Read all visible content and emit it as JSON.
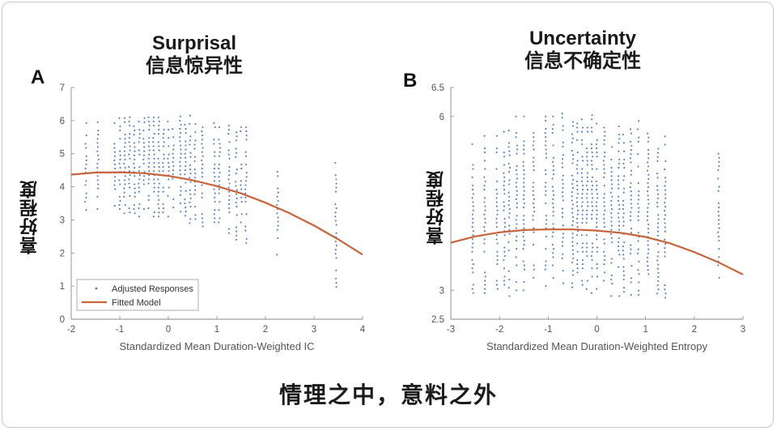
{
  "panels": [
    {
      "letter": "A",
      "title_en": "Surprisal",
      "title_zh": "信息惊异性",
      "ylabel": "喜好程度",
      "legend": {
        "points": "Adjusted Responses",
        "line": "Fitted Model"
      }
    },
    {
      "letter": "B",
      "title_en": "Uncertainty",
      "title_zh": "信息不确定性",
      "ylabel": "喜好程度"
    }
  ],
  "caption": "情理之中，意料之外",
  "colors": {
    "points": "#4f78c2",
    "curve": "#c8643a",
    "axis": "#8a8a8a",
    "tick": "#555555"
  },
  "chart_data": [
    {
      "type": "scatter",
      "title": "Surprisal",
      "xlabel": "Standardized Mean Duration-Weighted IC",
      "ylabel": "喜好程度",
      "xlim": [
        -2,
        4
      ],
      "ylim": [
        0,
        7
      ],
      "xticks": [
        -2,
        -1,
        0,
        1,
        2,
        3,
        4
      ],
      "yticks": [
        0,
        1,
        2,
        3,
        4,
        5,
        6,
        7
      ],
      "legend_position": "bottom-left",
      "series": [
        {
          "name": "Adjusted Responses",
          "kind": "points",
          "columns": [
            {
              "x": -1.7,
              "ymin": 3.3,
              "ymax": 6.0
            },
            {
              "x": -1.45,
              "ymin": 3.2,
              "ymax": 6.0
            },
            {
              "x": -1.1,
              "ymin": 3.3,
              "ymax": 6.1
            },
            {
              "x": -1.0,
              "ymin": 3.2,
              "ymax": 6.1
            },
            {
              "x": -0.9,
              "ymin": 3.2,
              "ymax": 6.1
            },
            {
              "x": -0.8,
              "ymin": 3.1,
              "ymax": 6.2
            },
            {
              "x": -0.7,
              "ymin": 3.2,
              "ymax": 6.2
            },
            {
              "x": -0.6,
              "ymin": 3.1,
              "ymax": 6.2
            },
            {
              "x": -0.5,
              "ymin": 3.2,
              "ymax": 6.2
            },
            {
              "x": -0.4,
              "ymin": 3.1,
              "ymax": 6.2
            },
            {
              "x": -0.3,
              "ymin": 3.1,
              "ymax": 6.2
            },
            {
              "x": -0.2,
              "ymin": 3.1,
              "ymax": 6.2
            },
            {
              "x": -0.1,
              "ymin": 3.1,
              "ymax": 6.2
            },
            {
              "x": 0.0,
              "ymin": 3.1,
              "ymax": 6.2
            },
            {
              "x": 0.1,
              "ymin": 3.0,
              "ymax": 6.2
            },
            {
              "x": 0.25,
              "ymin": 3.0,
              "ymax": 6.2
            },
            {
              "x": 0.35,
              "ymin": 3.0,
              "ymax": 6.1
            },
            {
              "x": 0.45,
              "ymin": 2.9,
              "ymax": 6.2
            },
            {
              "x": 0.55,
              "ymin": 2.9,
              "ymax": 6.1
            },
            {
              "x": 0.7,
              "ymin": 2.8,
              "ymax": 6.0
            },
            {
              "x": 0.95,
              "ymin": 2.8,
              "ymax": 6.1
            },
            {
              "x": 1.05,
              "ymin": 2.8,
              "ymax": 5.9
            },
            {
              "x": 1.25,
              "ymin": 2.6,
              "ymax": 6.0
            },
            {
              "x": 1.4,
              "ymin": 2.4,
              "ymax": 5.9
            },
            {
              "x": 1.5,
              "ymin": 2.3,
              "ymax": 5.9
            },
            {
              "x": 1.6,
              "ymin": 2.3,
              "ymax": 5.9
            },
            {
              "x": 2.25,
              "ymin": 1.7,
              "ymax": 4.9
            },
            {
              "x": 3.45,
              "ymin": 0.6,
              "ymax": 5.0
            }
          ]
        },
        {
          "name": "Fitted Model",
          "kind": "curve",
          "x": [
            -2,
            -1.5,
            -1,
            -0.5,
            0,
            0.5,
            1,
            1.5,
            2,
            2.5,
            3,
            3.5,
            4
          ],
          "y": [
            4.37,
            4.43,
            4.44,
            4.41,
            4.33,
            4.2,
            4.02,
            3.8,
            3.52,
            3.2,
            2.83,
            2.41,
            1.95
          ]
        }
      ]
    },
    {
      "type": "scatter",
      "title": "Uncertainty",
      "xlabel": "Standardized Mean Duration-Weighted Entropy",
      "ylabel": "喜好程度",
      "xlim": [
        -3,
        3
      ],
      "ylim": [
        2.5,
        6.5
      ],
      "xticks": [
        -3,
        -2,
        -1,
        0,
        1,
        2,
        3
      ],
      "yticks": [
        2.5,
        3,
        6,
        6.5
      ],
      "series": [
        {
          "name": "Adjusted Responses",
          "kind": "points",
          "columns": [
            {
              "x": -2.55,
              "ymin": 2.95,
              "ymax": 5.6
            },
            {
              "x": -2.3,
              "ymin": 2.95,
              "ymax": 5.7
            },
            {
              "x": -2.05,
              "ymin": 2.95,
              "ymax": 5.75
            },
            {
              "x": -1.9,
              "ymin": 2.95,
              "ymax": 5.8
            },
            {
              "x": -1.8,
              "ymin": 2.9,
              "ymax": 5.9
            },
            {
              "x": -1.65,
              "ymin": 3.0,
              "ymax": 6.0
            },
            {
              "x": -1.5,
              "ymin": 3.0,
              "ymax": 6.05
            },
            {
              "x": -1.3,
              "ymin": 3.0,
              "ymax": 6.05
            },
            {
              "x": -1.05,
              "ymin": 3.0,
              "ymax": 6.05
            },
            {
              "x": -0.9,
              "ymin": 3.0,
              "ymax": 6.05
            },
            {
              "x": -0.7,
              "ymin": 3.05,
              "ymax": 6.05
            },
            {
              "x": -0.5,
              "ymin": 3.05,
              "ymax": 6.05
            },
            {
              "x": -0.4,
              "ymin": 2.95,
              "ymax": 6.05
            },
            {
              "x": -0.3,
              "ymin": 2.95,
              "ymax": 6.05
            },
            {
              "x": -0.2,
              "ymin": 2.95,
              "ymax": 6.05
            },
            {
              "x": -0.1,
              "ymin": 2.95,
              "ymax": 6.05
            },
            {
              "x": 0.0,
              "ymin": 2.95,
              "ymax": 6.0
            },
            {
              "x": 0.15,
              "ymin": 2.95,
              "ymax": 6.0
            },
            {
              "x": 0.3,
              "ymin": 2.9,
              "ymax": 6.0
            },
            {
              "x": 0.45,
              "ymin": 2.9,
              "ymax": 6.0
            },
            {
              "x": 0.55,
              "ymin": 2.9,
              "ymax": 6.0
            },
            {
              "x": 0.7,
              "ymin": 2.85,
              "ymax": 6.0
            },
            {
              "x": 0.85,
              "ymin": 2.85,
              "ymax": 5.95
            },
            {
              "x": 1.05,
              "ymin": 2.85,
              "ymax": 5.9
            },
            {
              "x": 1.25,
              "ymin": 2.8,
              "ymax": 5.85
            },
            {
              "x": 1.4,
              "ymin": 2.8,
              "ymax": 5.8
            },
            {
              "x": 2.5,
              "ymin": 3.0,
              "ymax": 5.55
            }
          ]
        },
        {
          "name": "Fitted Model",
          "kind": "curve",
          "x": [
            -3,
            -2.5,
            -2,
            -1.5,
            -1,
            -0.5,
            0,
            0.5,
            1,
            1.5,
            2,
            2.5,
            3
          ],
          "y": [
            3.82,
            3.93,
            4.0,
            4.04,
            4.05,
            4.05,
            4.03,
            3.99,
            3.92,
            3.81,
            3.66,
            3.48,
            3.27
          ]
        }
      ]
    }
  ]
}
